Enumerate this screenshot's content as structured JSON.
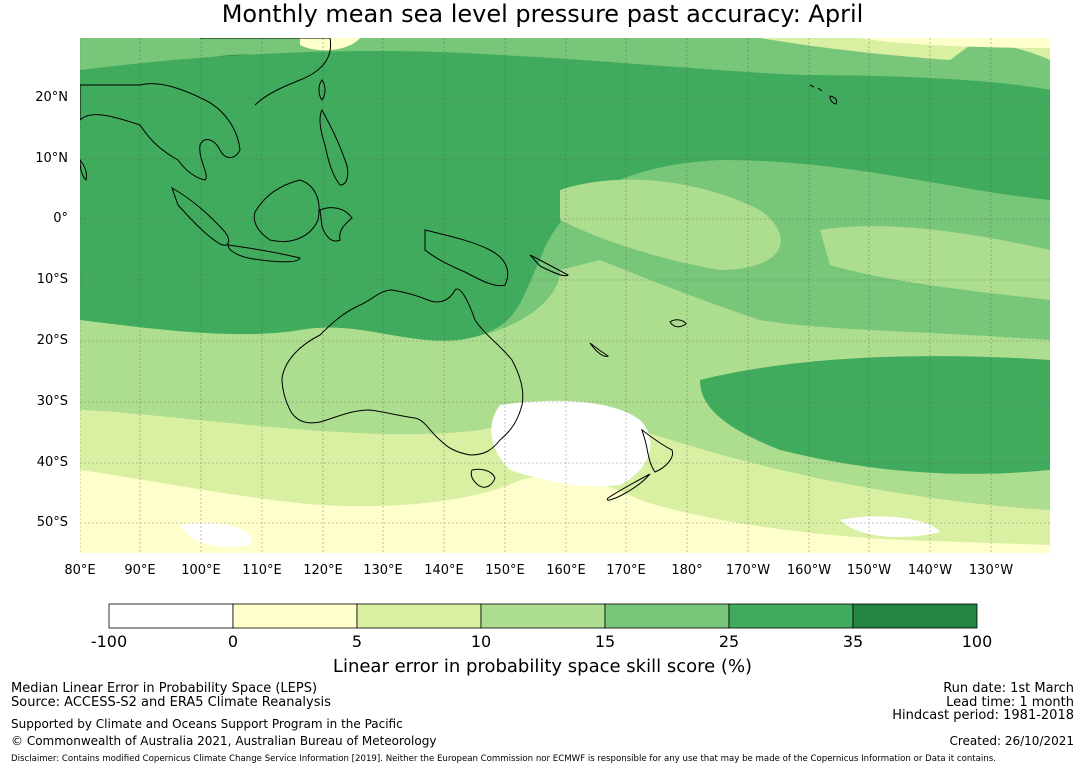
{
  "title": "Monthly mean sea level pressure past accuracy: April",
  "map": {
    "lat_labels": [
      "20°N",
      "10°N",
      "0°",
      "10°S",
      "20°S",
      "30°S",
      "40°S",
      "50°S"
    ],
    "lon_labels": [
      "80°E",
      "90°E",
      "100°E",
      "110°E",
      "120°E",
      "130°E",
      "140°E",
      "150°E",
      "160°E",
      "170°E",
      "180°",
      "170°W",
      "160°W",
      "150°W",
      "140°W",
      "130°W"
    ],
    "lon_range": [
      80,
      240
    ],
    "lat_range": [
      -55,
      30
    ]
  },
  "colorbar": {
    "bounds": [
      "-100",
      "0",
      "5",
      "10",
      "15",
      "25",
      "35",
      "100"
    ],
    "colors": [
      "#ffffff",
      "#ffffcc",
      "#d9f0a3",
      "#addd8e",
      "#78c679",
      "#41ab5d",
      "#238443"
    ],
    "title": "Linear error in probability space skill score (%)"
  },
  "footer": {
    "method": "Median Linear Error in Probability Space (LEPS)",
    "source": "Source: ACCESS-S2 and ERA5 Climate Reanalysis",
    "support": "Supported by Climate and Oceans Support Program in the Pacific",
    "copyright": "© Commonwealth of Australia 2021, Australian Bureau of Meteorology",
    "run_date": "Run date: 1st March",
    "lead_time": "Lead time: 1 month",
    "hindcast": "Hindcast period: 1981-2018",
    "created": "Created: 26/10/2021",
    "disclaimer": "Disclaimer: Contains modified Copernicus Climate Change Service Information [2019]. Neither the European Commission nor ECMWF is responsible for any use that may be made of the Copernicus Information or Data it contains."
  }
}
